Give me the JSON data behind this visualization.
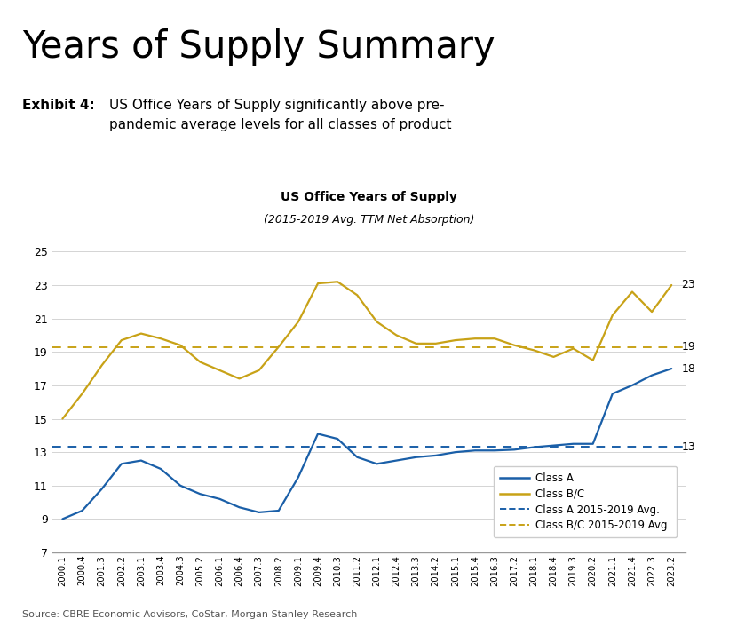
{
  "title_main": "Years of Supply Summary",
  "exhibit_label": "Exhibit 4:",
  "exhibit_text": "US Office Years of Supply significantly above pre-\npandemic average levels for all classes of product",
  "chart_title": "US Office Years of Supply",
  "chart_subtitle": "(2015-2019 Avg. TTM Net Absorption)",
  "source": "Source: CBRE Economic Advisors, CoStar, Morgan Stanley Research",
  "class_a_avg": 13.35,
  "class_bc_avg": 19.3,
  "ylim": [
    7,
    26
  ],
  "yticks": [
    7,
    9,
    11,
    13,
    15,
    17,
    19,
    21,
    23,
    25
  ],
  "end_label_a": "18",
  "end_label_bc": "23",
  "end_label_a_avg": "13",
  "end_label_bc_avg": "19",
  "class_a_color": "#1a5fa8",
  "class_bc_color": "#c8a217",
  "background_color": "#ffffff",
  "grid_color": "#d4d4d4",
  "x_labels": [
    "2000.1",
    "2000.4",
    "2001.3",
    "2002.2",
    "2003.1",
    "2003.4",
    "2004.3",
    "2005.2",
    "2006.1",
    "2006.4",
    "2007.3",
    "2008.2",
    "2009.1",
    "2009.4",
    "2010.3",
    "2011.2",
    "2012.1",
    "2012.4",
    "2013.3",
    "2014.2",
    "2015.1",
    "2015.4",
    "2016.3",
    "2017.2",
    "2018.1",
    "2018.4",
    "2019.3",
    "2020.2",
    "2021.1",
    "2021.4",
    "2022.3",
    "2023.2"
  ],
  "class_a": [
    9.0,
    9.5,
    10.8,
    12.3,
    12.5,
    12.0,
    11.0,
    10.5,
    10.2,
    9.7,
    9.4,
    9.5,
    11.5,
    14.1,
    13.8,
    12.7,
    12.3,
    12.5,
    12.7,
    12.8,
    13.0,
    13.1,
    13.1,
    13.15,
    13.3,
    13.4,
    13.5,
    13.5,
    16.5,
    17.0,
    17.6,
    18.0
  ],
  "class_bc": [
    15.0,
    16.5,
    18.2,
    19.7,
    20.1,
    19.8,
    19.4,
    18.4,
    17.9,
    17.4,
    17.9,
    19.3,
    20.8,
    23.1,
    23.2,
    22.4,
    20.8,
    20.0,
    19.5,
    19.5,
    19.7,
    19.8,
    19.8,
    19.4,
    19.1,
    18.7,
    19.2,
    18.5,
    21.2,
    22.6,
    21.4,
    23.0
  ]
}
